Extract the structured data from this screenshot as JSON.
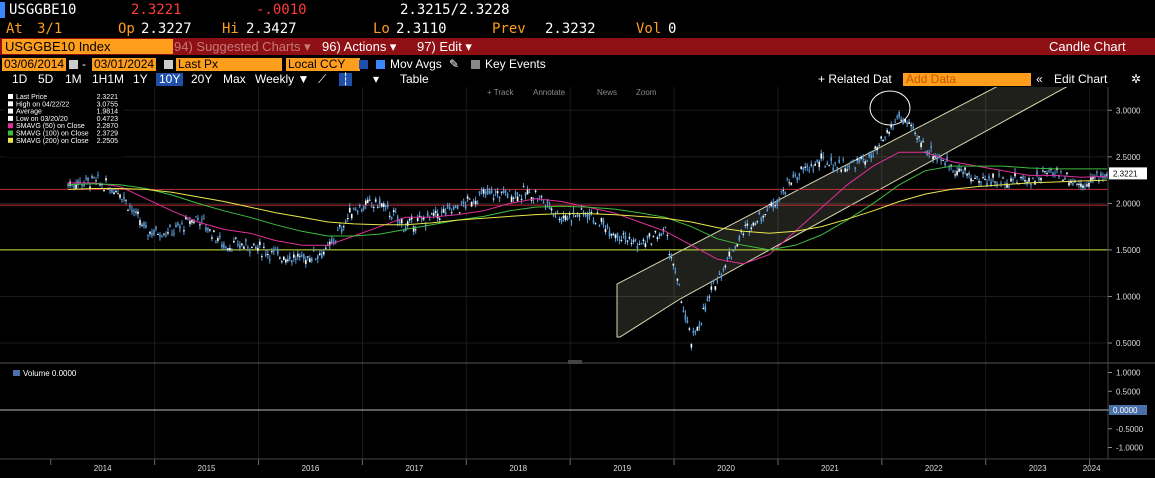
{
  "header": {
    "ticker": "USGGBE10",
    "last": "2.3221",
    "change": "-.0010",
    "bid_ask": "2.3215/2.3228",
    "at_label": "At",
    "at_date": "3/1",
    "open_label": "Op",
    "open": "2.3227",
    "high_label": "Hi",
    "high": "2.3427",
    "low_label": "Lo",
    "low": "2.3110",
    "prev_label": "Prev",
    "prev": "2.3232",
    "vol_label": "Vol",
    "vol": "0"
  },
  "menu": {
    "ticker_field": "USGGBE10 Index",
    "suggested": "94) Suggested Charts ▾",
    "actions": "96) Actions ▾",
    "edit": "97) Edit ▾",
    "chart_type": "Candle Chart"
  },
  "settings": {
    "start_date": "03/06/2014",
    "end_date": "03/01/2024",
    "dash": "-",
    "field": "Last Px",
    "currency": "Local CCY",
    "mov_avgs": "Mov Avgs",
    "key_events": "Key Events"
  },
  "periods": {
    "items": [
      "1D",
      "5D",
      "1M",
      "1H1M",
      "1Y",
      "10Y",
      "20Y",
      "Max"
    ],
    "active": "10Y",
    "weekly": "Weekly ▼",
    "table": "Table",
    "related": "+ Related Dat",
    "add_data_placeholder": "Add Data",
    "edit_chart": "Edit Chart"
  },
  "toolbar": {
    "track": "+ Track",
    "annotate": "Annotate",
    "news": "News",
    "zoom": "Zoom"
  },
  "legend": [
    {
      "label": "Last Price",
      "value": "2.3221",
      "color": "#ffffff"
    },
    {
      "label": "High on 04/22/22",
      "value": "3.0755",
      "color": "#ffffff"
    },
    {
      "label": "Average",
      "value": "1.9814",
      "color": "#ffffff"
    },
    {
      "label": "Low on 03/20/20",
      "value": "0.4723",
      "color": "#ffffff"
    },
    {
      "label": "SMAVG (50)  on Close",
      "value": "2.2870",
      "color": "#e0309a"
    },
    {
      "label": "SMAVG (100)  on Close",
      "value": "2.3729",
      "color": "#3dbd3d"
    },
    {
      "label": "SMAVG (200)  on Close",
      "value": "2.2505",
      "color": "#e8e84a"
    }
  ],
  "volume_legend": "Volume 0.0000",
  "colors": {
    "accent_orange": "#ff9d1c",
    "menu_red": "#8e0f14",
    "candle": "#5b9bd5",
    "sma50": "#e0309a",
    "sma100": "#3dbd3d",
    "sma200": "#e8e84a",
    "avg_line": "#c0303a",
    "support_line": "#c8e63a"
  },
  "chart_data": {
    "type": "line",
    "x": [
      "2014-03",
      "2014-06",
      "2014-09",
      "2014-12",
      "2015-03",
      "2015-06",
      "2015-09",
      "2015-12",
      "2016-03",
      "2016-06",
      "2016-09",
      "2016-12",
      "2017-03",
      "2017-06",
      "2017-09",
      "2017-12",
      "2018-03",
      "2018-06",
      "2018-09",
      "2018-12",
      "2019-03",
      "2019-06",
      "2019-09",
      "2019-12",
      "2020-03",
      "2020-06",
      "2020-09",
      "2020-12",
      "2021-03",
      "2021-06",
      "2021-09",
      "2021-12",
      "2022-03",
      "2022-06",
      "2022-09",
      "2022-12",
      "2023-03",
      "2023-06",
      "2023-09",
      "2023-12",
      "2024-03"
    ],
    "series": [
      {
        "name": "Last Price",
        "values": [
          2.21,
          2.24,
          2.13,
          1.7,
          1.7,
          1.85,
          1.55,
          1.55,
          1.45,
          1.4,
          1.5,
          1.95,
          2.0,
          1.75,
          1.85,
          1.95,
          2.1,
          2.1,
          2.1,
          1.85,
          1.9,
          1.7,
          1.55,
          1.7,
          0.5,
          1.2,
          1.7,
          1.95,
          2.3,
          2.45,
          2.4,
          2.5,
          2.95,
          2.6,
          2.4,
          2.25,
          2.25,
          2.25,
          2.35,
          2.2,
          2.32
        ]
      },
      {
        "name": "SMAVG (50)",
        "values": [
          2.22,
          2.22,
          2.18,
          2.05,
          1.92,
          1.8,
          1.72,
          1.68,
          1.6,
          1.55,
          1.55,
          1.65,
          1.75,
          1.85,
          1.85,
          1.88,
          1.92,
          2.0,
          2.05,
          2.02,
          1.96,
          1.9,
          1.8,
          1.7,
          1.55,
          1.4,
          1.35,
          1.45,
          1.7,
          1.95,
          2.2,
          2.4,
          2.55,
          2.55,
          2.45,
          2.4,
          2.35,
          2.3,
          2.3,
          2.28,
          2.29
        ]
      },
      {
        "name": "SMAVG (100)",
        "values": [
          2.2,
          2.21,
          2.2,
          2.16,
          2.09,
          2.0,
          1.92,
          1.85,
          1.77,
          1.7,
          1.65,
          1.65,
          1.67,
          1.72,
          1.77,
          1.82,
          1.86,
          1.92,
          1.96,
          1.97,
          1.96,
          1.94,
          1.9,
          1.85,
          1.75,
          1.62,
          1.55,
          1.5,
          1.55,
          1.66,
          1.82,
          2.0,
          2.2,
          2.35,
          2.4,
          2.4,
          2.4,
          2.38,
          2.37,
          2.37,
          2.37
        ]
      },
      {
        "name": "SMAVG (200)",
        "values": [
          2.15,
          2.16,
          2.16,
          2.15,
          2.12,
          2.07,
          2.02,
          1.96,
          1.9,
          1.85,
          1.8,
          1.78,
          1.77,
          1.77,
          1.79,
          1.82,
          1.84,
          1.86,
          1.88,
          1.89,
          1.89,
          1.88,
          1.86,
          1.84,
          1.8,
          1.74,
          1.7,
          1.68,
          1.7,
          1.75,
          1.83,
          1.92,
          2.02,
          2.1,
          2.15,
          2.18,
          2.2,
          2.22,
          2.23,
          2.24,
          2.25
        ]
      }
    ],
    "reference_lines": [
      {
        "label": "Average",
        "y": 1.9814
      },
      {
        "y": 2.15
      },
      {
        "y": 1.5
      }
    ],
    "x_tick_labels": [
      "2014",
      "2015",
      "2016",
      "2017",
      "2018",
      "2019",
      "2020",
      "2021",
      "2022",
      "2023",
      "2024"
    ],
    "y_ticks": [
      "0.5000",
      "1.0000",
      "1.5000",
      "2.0000",
      "2.5000",
      "3.0000"
    ],
    "ylim": [
      0.35,
      3.25
    ],
    "right_axis_badge": "2.3221",
    "volume_ticks": [
      "1.0000",
      "0.5000",
      "0.0000",
      "-0.5000",
      "-1.0000"
    ],
    "volume_ylim": [
      -1.2,
      1.2
    ],
    "grid": true,
    "legend_position": "top-left"
  }
}
